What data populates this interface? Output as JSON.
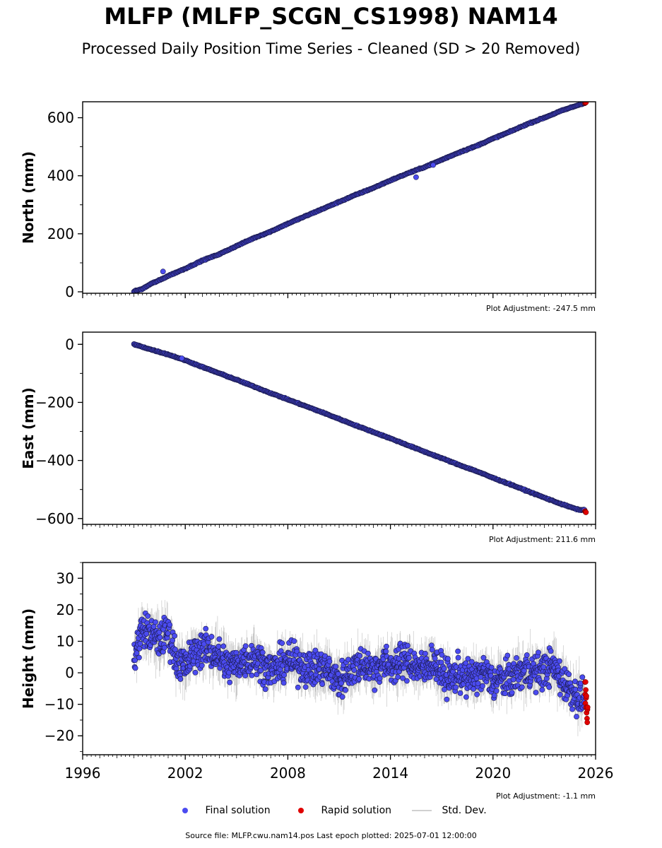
{
  "title": "MLFP (MLFP_SCGN_CS1998) NAM14",
  "subtitle": "Processed Daily Position Time Series - Cleaned (SD > 20 Removed)",
  "legend": {
    "final": "Final solution",
    "rapid": "Rapid solution",
    "std": "Std. Dev."
  },
  "footer": {
    "source": "Source file: MLFP.cwu.nam14.pos  Last epoch plotted: 2025-07-01 12:00:00"
  },
  "colors": {
    "final": "#4b4bf0",
    "final_edge": "#1a1a4a",
    "rapid": "#e00000",
    "std": "#9a9a9a"
  },
  "chart_data": [
    {
      "type": "scatter",
      "ylabel": "North (mm)",
      "adjustment": "Plot Adjustment: -247.5 mm",
      "xlim": [
        1996,
        2026
      ],
      "ylim": [
        -5,
        655
      ],
      "yticks": [
        0,
        200,
        400,
        600
      ],
      "ytick_labels": [
        "0",
        "200",
        "400",
        "600"
      ],
      "trend": {
        "start": [
          1999.0,
          0
        ],
        "end": [
          2025.5,
          652
        ]
      },
      "series": [
        {
          "name": "Final solution",
          "x": [
            1999.0,
            1999.5,
            2000.0,
            2000.5,
            2001.0,
            2002.0,
            2003.0,
            2004.0,
            2005.0,
            2006.0,
            2007.0,
            2008.0,
            2009.0,
            2010.0,
            2011.0,
            2012.0,
            2013.0,
            2014.0,
            2015.0,
            2016.0,
            2017.0,
            2018.0,
            2019.0,
            2020.0,
            2021.0,
            2022.0,
            2023.0,
            2024.0,
            2025.0,
            2025.3
          ],
          "y": [
            2,
            10,
            28,
            40,
            55,
            80,
            108,
            130,
            158,
            185,
            208,
            235,
            260,
            285,
            310,
            335,
            358,
            384,
            408,
            430,
            455,
            480,
            502,
            528,
            552,
            578,
            600,
            624,
            644,
            650
          ]
        },
        {
          "name": "Rapid solution",
          "x": [
            2025.4,
            2025.45,
            2025.5
          ],
          "y": [
            651,
            652,
            653
          ]
        }
      ],
      "outliers": [
        {
          "x": 2000.7,
          "y": 70
        },
        {
          "x": 2015.5,
          "y": 395
        },
        {
          "x": 2016.5,
          "y": 437
        }
      ]
    },
    {
      "type": "scatter",
      "ylabel": "East (mm)",
      "adjustment": "Plot Adjustment: 211.6 mm",
      "xlim": [
        1996,
        2026
      ],
      "ylim": [
        -620,
        42
      ],
      "yticks": [
        0,
        -200,
        -400,
        -600
      ],
      "ytick_labels": [
        "0",
        "−200",
        "−400",
        "−600"
      ],
      "trend": {
        "start": [
          1999.0,
          0
        ],
        "end": [
          2025.5,
          -578
        ]
      },
      "series": [
        {
          "name": "Final solution",
          "x": [
            1999.0,
            2000.0,
            2001.0,
            2002.0,
            2003.0,
            2004.0,
            2005.0,
            2006.0,
            2007.0,
            2008.0,
            2009.0,
            2010.0,
            2011.0,
            2012.0,
            2013.0,
            2014.0,
            2015.0,
            2016.0,
            2017.0,
            2018.0,
            2019.0,
            2020.0,
            2021.0,
            2022.0,
            2023.0,
            2024.0,
            2025.0
          ],
          "y": [
            0,
            -18,
            -35,
            -55,
            -78,
            -100,
            -122,
            -145,
            -168,
            -190,
            -212,
            -234,
            -257,
            -280,
            -302,
            -324,
            -347,
            -370,
            -392,
            -415,
            -436,
            -460,
            -482,
            -505,
            -528,
            -550,
            -570
          ]
        },
        {
          "name": "Rapid solution",
          "x": [
            2025.4,
            2025.45,
            2025.5
          ],
          "y": [
            -575,
            -577,
            -578
          ]
        }
      ],
      "outliers": [
        {
          "x": 2001.8,
          "y": -48
        }
      ]
    },
    {
      "type": "scatter",
      "ylabel": "Height (mm)",
      "adjustment": "Plot Adjustment: -1.1 mm",
      "xlim": [
        1996,
        2026
      ],
      "ylim": [
        -26,
        35
      ],
      "yticks": [
        30,
        20,
        10,
        0,
        -10,
        -20
      ],
      "ytick_labels": [
        "30",
        "20",
        "10",
        "0",
        "−10",
        "−20"
      ],
      "xticks": [
        1996,
        2002,
        2008,
        2014,
        2020,
        2026
      ],
      "xtick_labels": [
        "1996",
        "2002",
        "2008",
        "2014",
        "2020",
        "2026"
      ],
      "series": [
        {
          "name": "Final solution",
          "x": [
            1999.0,
            1999.5,
            2000.0,
            2000.5,
            2001.0,
            2001.5,
            2002.0,
            2002.5,
            2003.0,
            2003.5,
            2004.0,
            2004.5,
            2005.0,
            2005.5,
            2006.0,
            2006.5,
            2007.0,
            2007.5,
            2008.0,
            2008.5,
            2009.0,
            2009.5,
            2010.0,
            2010.5,
            2011.0,
            2011.5,
            2012.0,
            2012.5,
            2013.0,
            2013.5,
            2014.0,
            2014.5,
            2015.0,
            2015.5,
            2016.0,
            2016.5,
            2017.0,
            2017.5,
            2018.0,
            2018.5,
            2019.0,
            2019.5,
            2020.0,
            2020.5,
            2021.0,
            2021.5,
            2022.0,
            2022.5,
            2023.0,
            2023.5,
            2024.0,
            2024.5,
            2025.0
          ],
          "y": [
            5,
            14,
            12,
            10,
            13,
            4,
            2,
            6,
            8,
            7,
            5,
            2,
            3,
            4,
            5,
            3,
            1,
            2,
            4,
            3,
            2,
            1,
            2,
            0,
            -3,
            0,
            2,
            3,
            1,
            3,
            2,
            3,
            4,
            2,
            1,
            4,
            0,
            -2,
            0,
            -2,
            -1,
            0,
            -3,
            -2,
            -2,
            0,
            1,
            0,
            1,
            2,
            -2,
            -5,
            -8
          ]
        },
        {
          "name": "Rapid solution",
          "x": [
            2025.4,
            2025.45,
            2025.5
          ],
          "y": [
            -6,
            -10,
            -13
          ]
        }
      ]
    }
  ]
}
